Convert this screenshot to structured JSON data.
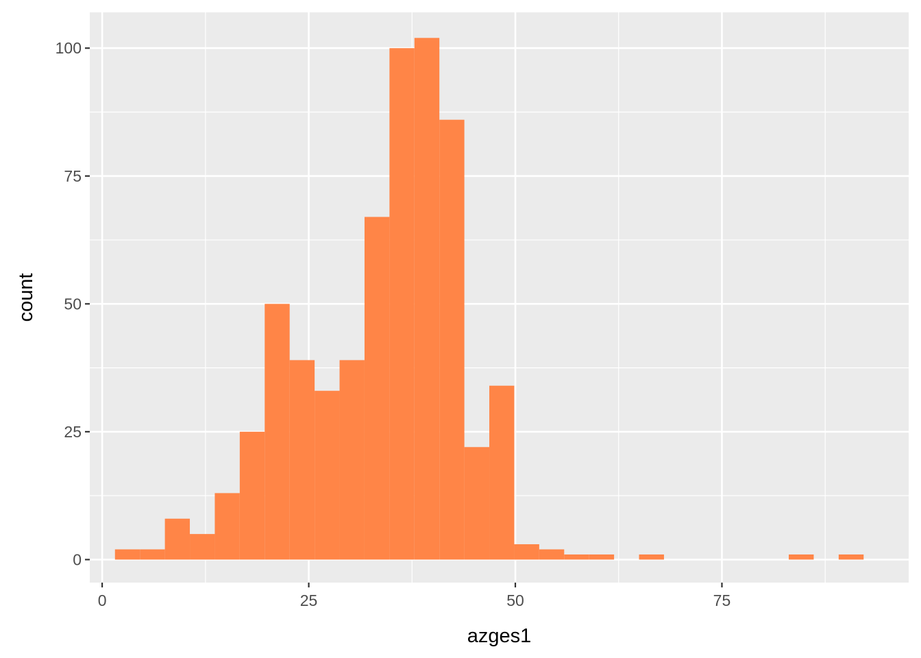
{
  "chart_data": {
    "type": "bar",
    "subtype": "histogram",
    "xlabel": "azges1",
    "ylabel": "count",
    "xlim": [
      -1.5,
      97.6
    ],
    "ylim": [
      -4.5,
      107.0
    ],
    "x_ticks": [
      0,
      25,
      50,
      75
    ],
    "y_ticks": [
      0,
      25,
      50,
      75,
      100
    ],
    "x_minor": [
      12.5,
      37.5,
      62.5,
      87.5
    ],
    "y_minor": [
      12.5,
      37.5,
      62.5,
      87.5
    ],
    "grid": true,
    "panel_background": "#ebebeb",
    "grid_color": "#ffffff",
    "bar_color": "#ff8547",
    "bins": [
      {
        "x0": 1.55,
        "x1": 4.57,
        "count": 2
      },
      {
        "x0": 4.57,
        "x1": 7.59,
        "count": 2
      },
      {
        "x0": 7.59,
        "x1": 10.61,
        "count": 8
      },
      {
        "x0": 10.61,
        "x1": 13.63,
        "count": 5
      },
      {
        "x0": 13.63,
        "x1": 16.65,
        "count": 13
      },
      {
        "x0": 16.65,
        "x1": 19.67,
        "count": 25
      },
      {
        "x0": 19.67,
        "x1": 22.69,
        "count": 50
      },
      {
        "x0": 22.69,
        "x1": 25.71,
        "count": 39
      },
      {
        "x0": 25.71,
        "x1": 28.73,
        "count": 33
      },
      {
        "x0": 28.73,
        "x1": 31.75,
        "count": 39
      },
      {
        "x0": 31.75,
        "x1": 34.77,
        "count": 67
      },
      {
        "x0": 34.77,
        "x1": 37.79,
        "count": 100
      },
      {
        "x0": 37.79,
        "x1": 40.81,
        "count": 102
      },
      {
        "x0": 40.81,
        "x1": 43.83,
        "count": 86
      },
      {
        "x0": 43.83,
        "x1": 46.85,
        "count": 22
      },
      {
        "x0": 46.85,
        "x1": 49.87,
        "count": 34
      },
      {
        "x0": 49.87,
        "x1": 52.89,
        "count": 3
      },
      {
        "x0": 52.89,
        "x1": 55.91,
        "count": 2
      },
      {
        "x0": 55.91,
        "x1": 58.93,
        "count": 1
      },
      {
        "x0": 58.93,
        "x1": 61.95,
        "count": 1
      },
      {
        "x0": 64.97,
        "x1": 67.99,
        "count": 1
      },
      {
        "x0": 83.09,
        "x1": 86.11,
        "count": 1
      },
      {
        "x0": 89.13,
        "x1": 92.15,
        "count": 1
      }
    ]
  }
}
